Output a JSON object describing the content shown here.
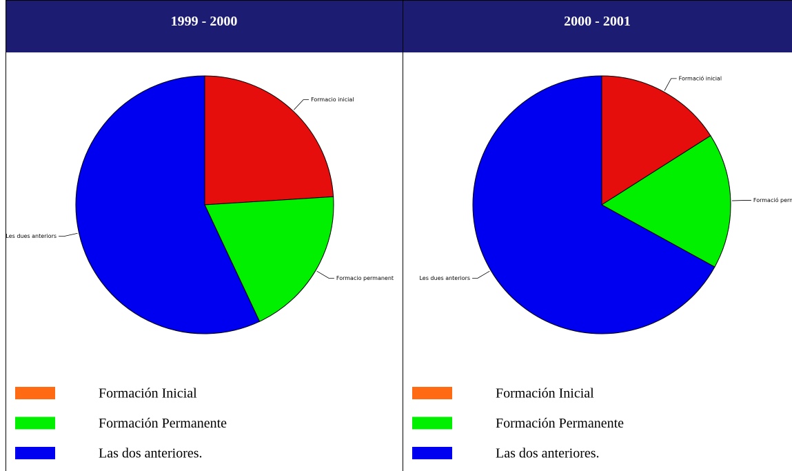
{
  "chart_data": [
    {
      "type": "pie",
      "title": "1999 - 2000",
      "categories": [
        "Formacio inicial",
        "Formacio permanent",
        "Les dues anteriors"
      ],
      "values": [
        24,
        19,
        57
      ],
      "colors": [
        "#e60d0d",
        "#00f000",
        "#0000f0"
      ],
      "legend": [
        "Formación Inicial",
        "Formación Permanente",
        "Las dos anteriores."
      ],
      "legend_colors": [
        "#ff6a13",
        "#00f000",
        "#0000f0"
      ]
    },
    {
      "type": "pie",
      "title": "2000 - 2001",
      "categories": [
        "Formació inicial",
        "Formació permanent",
        "Les dues anteriors"
      ],
      "values": [
        16,
        17,
        67
      ],
      "colors": [
        "#e60d0d",
        "#00f000",
        "#0000f0"
      ],
      "legend": [
        "Formación Inicial",
        "Formación Permanente",
        "Las dos anteriores."
      ],
      "legend_colors": [
        "#ff6a13",
        "#00f000",
        "#0000f0"
      ]
    }
  ]
}
